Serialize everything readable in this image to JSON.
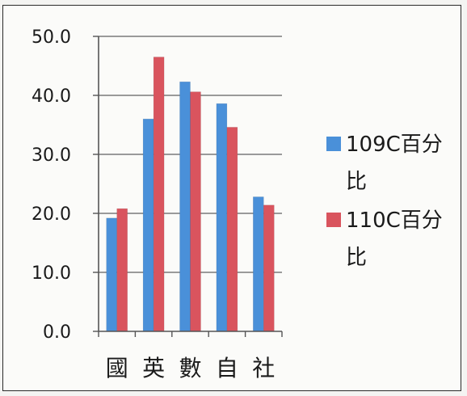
{
  "chart_data": {
    "type": "bar",
    "categories": [
      "國",
      "英",
      "數",
      "自",
      "社"
    ],
    "series": [
      {
        "name": "109C百分比",
        "values": [
          19.2,
          36.0,
          42.3,
          38.6,
          22.8
        ],
        "color": "#4a90d9"
      },
      {
        "name": "110C百分比",
        "values": [
          20.8,
          46.5,
          40.6,
          34.6,
          21.4
        ],
        "color": "#d9545e"
      }
    ],
    "ylim": [
      0,
      50
    ],
    "yticks": [
      "0.0",
      "10.0",
      "20.0",
      "30.0",
      "40.0",
      "50.0"
    ],
    "grid": true,
    "legend": {
      "placement": "right",
      "entries": [
        {
          "line1": "109C百分",
          "line2": "比"
        },
        {
          "line1": "110C百分",
          "line2": "比"
        }
      ]
    }
  }
}
